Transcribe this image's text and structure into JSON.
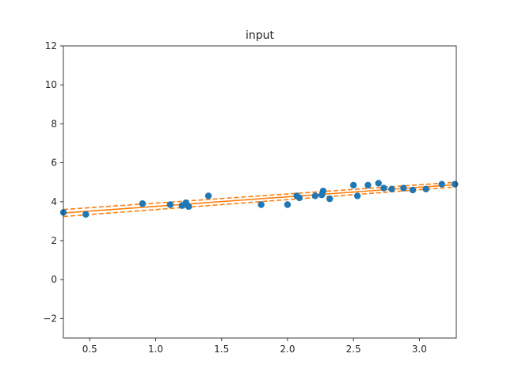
{
  "chart_data": {
    "type": "scatter",
    "title": "input",
    "xlabel": "",
    "ylabel": "",
    "xlim": [
      0.3,
      3.28
    ],
    "ylim": [
      -3,
      12
    ],
    "xticks": [
      0.5,
      1.0,
      1.5,
      2.0,
      2.5,
      3.0
    ],
    "xtick_labels": [
      "0.5",
      "1.0",
      "1.5",
      "2.0",
      "2.5",
      "3.0"
    ],
    "yticks": [
      -2,
      0,
      2,
      4,
      6,
      8,
      10,
      12
    ],
    "ytick_labels": [
      "−2",
      "0",
      "2",
      "4",
      "6",
      "8",
      "10",
      "12"
    ],
    "grid": false,
    "points": {
      "color": "#1f77b4",
      "x": [
        0.3,
        0.47,
        0.9,
        1.11,
        1.2,
        1.23,
        1.25,
        1.4,
        1.8,
        2.0,
        2.07,
        2.09,
        2.21,
        2.26,
        2.27,
        2.32,
        2.5,
        2.53,
        2.61,
        2.69,
        2.73,
        2.79,
        2.88,
        2.95,
        3.05,
        3.17,
        3.27
      ],
      "y": [
        3.45,
        3.35,
        3.9,
        3.85,
        3.8,
        3.95,
        3.75,
        4.3,
        3.85,
        3.85,
        4.3,
        4.2,
        4.3,
        4.35,
        4.55,
        4.15,
        4.85,
        4.3,
        4.85,
        4.95,
        4.7,
        4.65,
        4.7,
        4.6,
        4.65,
        4.9,
        4.9
      ]
    },
    "fit": {
      "color": "#ff7f0e",
      "x": [
        0.3,
        3.28
      ],
      "y": [
        3.42,
        4.88
      ],
      "upper": [
        3.6,
        5.0
      ],
      "lower": [
        3.24,
        4.76
      ]
    }
  }
}
